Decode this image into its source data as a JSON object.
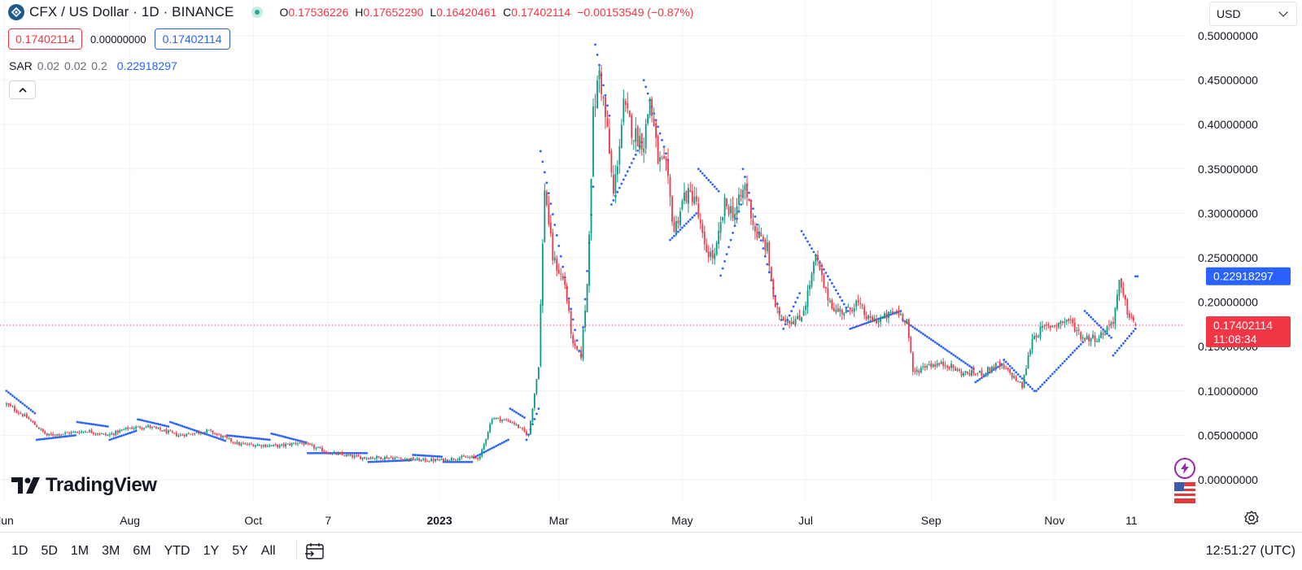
{
  "header": {
    "title": "CFX / US Dollar · 1D · BINANCE",
    "ohlc": [
      {
        "key": "O",
        "value": "0.17536226"
      },
      {
        "key": "H",
        "value": "0.17652290"
      },
      {
        "key": "L",
        "value": "0.16420461"
      },
      {
        "key": "C",
        "value": "0.17402114"
      }
    ],
    "change": "−0.00153549 (−0.87%)"
  },
  "order_boxes": {
    "sell_price": "0.17402114",
    "spread": "0.00000000",
    "buy_price": "0.17402114"
  },
  "indicator": {
    "name": "SAR",
    "params": [
      "0.02",
      "0.02",
      "0.2"
    ],
    "value": "0.22918297"
  },
  "currency": "USD",
  "branding": "TradingView",
  "chart_data": {
    "type": "candlestick",
    "symbol": "CFX / US Dollar",
    "interval": "1D",
    "exchange": "BINANCE",
    "y_axis": {
      "ticks": [
        "0.50000000",
        "0.45000000",
        "0.40000000",
        "0.35000000",
        "0.30000000",
        "0.25000000",
        "0.20000000",
        "0.15000000",
        "0.10000000",
        "0.05000000",
        "0.00000000"
      ],
      "range": [
        -0.02,
        0.52
      ]
    },
    "x_axis": {
      "labels": [
        {
          "label": "Jun",
          "day": -1,
          "bold": false
        },
        {
          "label": "Aug",
          "day": 61,
          "bold": false
        },
        {
          "label": "Oct",
          "day": 122,
          "bold": false
        },
        {
          "label": "7",
          "day": 159,
          "bold": false
        },
        {
          "label": "2023",
          "day": 214,
          "bold": true
        },
        {
          "label": "Mar",
          "day": 273,
          "bold": false
        },
        {
          "label": "May",
          "day": 334,
          "bold": false
        },
        {
          "label": "Jul",
          "day": 395,
          "bold": false
        },
        {
          "label": "Sep",
          "day": 457,
          "bold": false
        },
        {
          "label": "Nov",
          "day": 518,
          "bold": false
        },
        {
          "label": "11",
          "day": 556,
          "bold": false
        }
      ],
      "range_days": [
        0,
        582
      ]
    },
    "last_price": {
      "value": 0.17402114,
      "label": "0.17402114",
      "countdown": "11:08:34",
      "color": "#f23645"
    },
    "sar_price": {
      "value": 0.22918297,
      "label": "0.22918297",
      "color": "#2962ff"
    },
    "close_path": [
      [
        0,
        0.085
      ],
      [
        10,
        0.07
      ],
      [
        20,
        0.05
      ],
      [
        40,
        0.055
      ],
      [
        50,
        0.05
      ],
      [
        60,
        0.058
      ],
      [
        70,
        0.06
      ],
      [
        85,
        0.05
      ],
      [
        100,
        0.055
      ],
      [
        115,
        0.04
      ],
      [
        135,
        0.038
      ],
      [
        145,
        0.042
      ],
      [
        160,
        0.03
      ],
      [
        175,
        0.025
      ],
      [
        190,
        0.025
      ],
      [
        205,
        0.022
      ],
      [
        215,
        0.022
      ],
      [
        225,
        0.025
      ],
      [
        234,
        0.025
      ],
      [
        240,
        0.07
      ],
      [
        250,
        0.065
      ],
      [
        258,
        0.05
      ],
      [
        263,
        0.13
      ],
      [
        266,
        0.33
      ],
      [
        270,
        0.25
      ],
      [
        276,
        0.22
      ],
      [
        280,
        0.15
      ],
      [
        284,
        0.14
      ],
      [
        287,
        0.22
      ],
      [
        290,
        0.41
      ],
      [
        293,
        0.46
      ],
      [
        297,
        0.39
      ],
      [
        300,
        0.32
      ],
      [
        305,
        0.42
      ],
      [
        310,
        0.39
      ],
      [
        315,
        0.38
      ],
      [
        318,
        0.43
      ],
      [
        322,
        0.36
      ],
      [
        326,
        0.35
      ],
      [
        330,
        0.28
      ],
      [
        335,
        0.32
      ],
      [
        340,
        0.32
      ],
      [
        345,
        0.26
      ],
      [
        350,
        0.25
      ],
      [
        355,
        0.31
      ],
      [
        360,
        0.3
      ],
      [
        365,
        0.33
      ],
      [
        370,
        0.28
      ],
      [
        376,
        0.26
      ],
      [
        380,
        0.19
      ],
      [
        386,
        0.18
      ],
      [
        392,
        0.18
      ],
      [
        395,
        0.2
      ],
      [
        400,
        0.25
      ],
      [
        405,
        0.21
      ],
      [
        410,
        0.19
      ],
      [
        416,
        0.19
      ],
      [
        420,
        0.2
      ],
      [
        426,
        0.18
      ],
      [
        432,
        0.18
      ],
      [
        440,
        0.19
      ],
      [
        445,
        0.18
      ],
      [
        448,
        0.12
      ],
      [
        455,
        0.13
      ],
      [
        465,
        0.13
      ],
      [
        472,
        0.12
      ],
      [
        482,
        0.12
      ],
      [
        490,
        0.13
      ],
      [
        496,
        0.12
      ],
      [
        502,
        0.105
      ],
      [
        507,
        0.16
      ],
      [
        512,
        0.17
      ],
      [
        518,
        0.175
      ],
      [
        525,
        0.18
      ],
      [
        532,
        0.16
      ],
      [
        540,
        0.16
      ],
      [
        547,
        0.18
      ],
      [
        550,
        0.22
      ],
      [
        554,
        0.19
      ],
      [
        558,
        0.174
      ]
    ],
    "sar_segments": [
      {
        "start": 0,
        "end": 14,
        "from": 0.1,
        "to": 0.075
      },
      {
        "start": 15,
        "end": 34,
        "from": 0.045,
        "to": 0.05
      },
      {
        "start": 35,
        "end": 50,
        "from": 0.065,
        "to": 0.06
      },
      {
        "start": 51,
        "end": 64,
        "from": 0.045,
        "to": 0.055
      },
      {
        "start": 65,
        "end": 80,
        "from": 0.068,
        "to": 0.06
      },
      {
        "start": 81,
        "end": 108,
        "from": 0.065,
        "to": 0.044
      },
      {
        "start": 109,
        "end": 130,
        "from": 0.05,
        "to": 0.045
      },
      {
        "start": 131,
        "end": 148,
        "from": 0.052,
        "to": 0.042
      },
      {
        "start": 149,
        "end": 178,
        "from": 0.03,
        "to": 0.03
      },
      {
        "start": 179,
        "end": 200,
        "from": 0.02,
        "to": 0.022
      },
      {
        "start": 201,
        "end": 215,
        "from": 0.028,
        "to": 0.026
      },
      {
        "start": 216,
        "end": 230,
        "from": 0.02,
        "to": 0.02
      },
      {
        "start": 231,
        "end": 248,
        "from": 0.025,
        "to": 0.045
      },
      {
        "start": 249,
        "end": 256,
        "from": 0.08,
        "to": 0.07
      },
      {
        "start": 257,
        "end": 263,
        "from": 0.045,
        "to": 0.08
      },
      {
        "start": 264,
        "end": 283,
        "from": 0.37,
        "to": 0.145
      },
      {
        "start": 284,
        "end": 290,
        "from": 0.14,
        "to": 0.33
      },
      {
        "start": 291,
        "end": 298,
        "from": 0.49,
        "to": 0.41
      },
      {
        "start": 299,
        "end": 314,
        "from": 0.31,
        "to": 0.38
      },
      {
        "start": 315,
        "end": 327,
        "from": 0.45,
        "to": 0.36
      },
      {
        "start": 328,
        "end": 341,
        "from": 0.27,
        "to": 0.3
      },
      {
        "start": 342,
        "end": 352,
        "from": 0.35,
        "to": 0.325
      },
      {
        "start": 353,
        "end": 363,
        "from": 0.23,
        "to": 0.31
      },
      {
        "start": 364,
        "end": 383,
        "from": 0.35,
        "to": 0.18
      },
      {
        "start": 384,
        "end": 392,
        "from": 0.17,
        "to": 0.21
      },
      {
        "start": 393,
        "end": 416,
        "from": 0.28,
        "to": 0.19
      },
      {
        "start": 417,
        "end": 442,
        "from": 0.17,
        "to": 0.19
      },
      {
        "start": 443,
        "end": 478,
        "from": 0.18,
        "to": 0.125
      },
      {
        "start": 479,
        "end": 492,
        "from": 0.11,
        "to": 0.13
      },
      {
        "start": 493,
        "end": 508,
        "from": 0.135,
        "to": 0.1
      },
      {
        "start": 509,
        "end": 532,
        "from": 0.1,
        "to": 0.155
      },
      {
        "start": 533,
        "end": 546,
        "from": 0.19,
        "to": 0.16
      },
      {
        "start": 547,
        "end": 558,
        "from": 0.14,
        "to": 0.17
      },
      {
        "start": 558,
        "end": 558,
        "from": 0.229,
        "to": 0.229
      }
    ],
    "colors": {
      "up": "#089981",
      "down": "#f23645",
      "sar": "#2962ff",
      "grid": "#f0f3fa"
    }
  },
  "time_ranges": [
    "1D",
    "5D",
    "1M",
    "3M",
    "6M",
    "YTD",
    "1Y",
    "5Y",
    "All"
  ],
  "clock": "12:51:27 (UTC)",
  "icons": {
    "logo": "cfx-logo-icon",
    "live": "live-status-icon",
    "bolt": "lightning-icon",
    "flag": "us-flag-icon",
    "settings": "gear-icon",
    "goto": "go-to-date-icon"
  }
}
